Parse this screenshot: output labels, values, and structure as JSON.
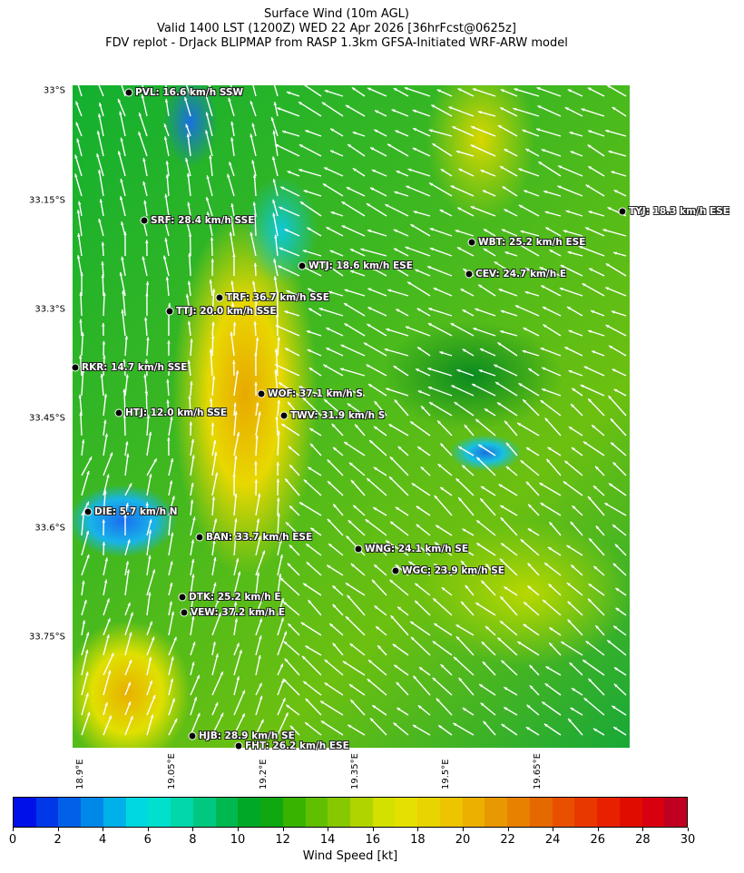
{
  "header": {
    "title": "Surface Wind (10m AGL)",
    "valid": "Valid 1400 LST (1200Z) WED 22 Apr 2026 [36hrFcst@0625z]",
    "source": "FDV replot - DrJack BLIPMAP from RASP 1.3km GFSA-Initiated WRF-ARW model"
  },
  "map": {
    "lat_ticks": [
      "33°S",
      "33.15°S",
      "33.3°S",
      "33.45°S",
      "33.6°S",
      "33.75°S"
    ],
    "lon_ticks": [
      "18.9°E",
      "19.05°E",
      "19.2°E",
      "19.35°E",
      "19.5°E",
      "19.65°E"
    ],
    "stations": [
      {
        "label": "PVL: 16.6 km/h SSW"
      },
      {
        "label": "SRF: 28.4 km/h SSE"
      },
      {
        "label": "WTJ: 18.6 km/h ESE"
      },
      {
        "label": "TRF: 36.7 km/h SSE"
      },
      {
        "label": "TTJ: 20.0 km/h SSE"
      },
      {
        "label": "TYJ: 18.3 km/h ESE"
      },
      {
        "label": "WBT: 25.2 km/h ESE"
      },
      {
        "label": "CEV: 24.7 km/h E"
      },
      {
        "label": "RKR: 14.7 km/h SSE"
      },
      {
        "label": "WOF: 37.1 km/h S"
      },
      {
        "label": "HTJ: 12.0 km/h SSE"
      },
      {
        "label": "TWV: 31.9 km/h S"
      },
      {
        "label": "DIE: 5.7 km/h N"
      },
      {
        "label": "BAN: 33.7 km/h ESE"
      },
      {
        "label": "WNG: 24.1 km/h SE"
      },
      {
        "label": "WGC: 23.9 km/h SE"
      },
      {
        "label": "DTK: 25.2 km/h E"
      },
      {
        "label": "VEW: 37.2 km/h E"
      },
      {
        "label": "HJB: 28.9 km/h SE"
      },
      {
        "label": "FHT: 26.2 km/h ESE"
      }
    ]
  },
  "colorbar": {
    "title": "Wind Speed [kt]",
    "range": [
      0,
      30
    ],
    "tick_labels": [
      "0",
      "2",
      "4",
      "6",
      "8",
      "10",
      "12",
      "14",
      "16",
      "18",
      "20",
      "22",
      "24",
      "26",
      "28",
      "30"
    ],
    "colors": [
      "#0010e8",
      "#0038e8",
      "#0060e8",
      "#0088e8",
      "#00b0e8",
      "#00d8e0",
      "#00e0cc",
      "#00d8aa",
      "#00c880",
      "#00b850",
      "#00a828",
      "#10a810",
      "#38b400",
      "#60c000",
      "#88c800",
      "#b0d400",
      "#d4e000",
      "#e6e000",
      "#e8d400",
      "#ecc400",
      "#ecb000",
      "#e89800",
      "#e88000",
      "#e66800",
      "#e85000",
      "#e83800",
      "#e82000",
      "#e00c00",
      "#d80010",
      "#c00020"
    ]
  }
}
